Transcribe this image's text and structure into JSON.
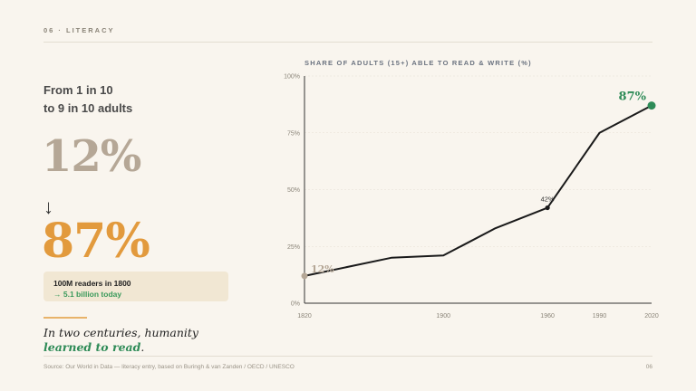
{
  "header": {
    "eyebrow": "06 · LITERACY"
  },
  "left": {
    "headline_line1": "From 1 in 10",
    "headline_line2": "to 9 in 10 adults",
    "from_value": "12%",
    "arrow": "↓",
    "to_value": "87%",
    "callout_line1": "100M readers in 1800",
    "callout_line2": "→ 5.1 billion today",
    "tagline_pre": "In two centuries, humanity",
    "tagline_em": "learned to read",
    "tagline_post": "."
  },
  "footer": {
    "source": "Source: Our World in Data — literacy entry, based on Buringh & van Zanden / OECD / UNESCO",
    "page": "06"
  },
  "colors": {
    "line": "#1a1a1a",
    "start": "#b5a796",
    "end": "#2e8b57",
    "mid": "#1a1a1a",
    "grid": "#e6e0d4"
  },
  "chart_data": {
    "type": "line",
    "title": "SHARE OF ADULTS (15+) ABLE TO READ & WRITE (%)",
    "x_ticks": [
      "1820",
      "1900",
      "1960",
      "1990",
      "2020"
    ],
    "y_ticks": [
      "0%",
      "25%",
      "50%",
      "75%",
      "100%"
    ],
    "xlim": [
      1820,
      2020
    ],
    "ylim": [
      0,
      100
    ],
    "grid": true,
    "series": [
      {
        "x": [
          1820,
          1870,
          1900,
          1930,
          1960,
          1990,
          2020
        ],
        "y": [
          12,
          20,
          21,
          33,
          42,
          75,
          87
        ]
      }
    ],
    "annotations": [
      {
        "x": 1820,
        "y": 12,
        "label": "12%",
        "role": "start"
      },
      {
        "x": 1960,
        "y": 42,
        "label": "42%",
        "role": "mid"
      },
      {
        "x": 2020,
        "y": 87,
        "label": "87%",
        "role": "end"
      }
    ]
  }
}
